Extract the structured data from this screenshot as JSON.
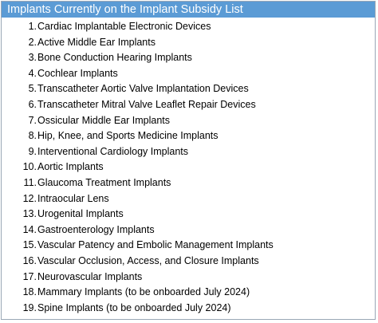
{
  "header": {
    "title": "Implants Currently on the Implant Subsidy List"
  },
  "colors": {
    "header_bg": "#5b9bd5",
    "header_text": "#ffffff",
    "border": "#9aa7b6"
  },
  "items": [
    {
      "num": "1.",
      "label": "Cardiac Implantable Electronic Devices"
    },
    {
      "num": "2.",
      "label": "Active Middle Ear Implants"
    },
    {
      "num": "3.",
      "label": "Bone Conduction Hearing Implants"
    },
    {
      "num": "4.",
      "label": "Cochlear Implants"
    },
    {
      "num": "5.",
      "label": "Transcatheter Aortic Valve Implantation Devices"
    },
    {
      "num": "6.",
      "label": "Transcatheter Mitral Valve Leaflet Repair Devices"
    },
    {
      "num": "7.",
      "label": "Ossicular Middle Ear Implants"
    },
    {
      "num": "8.",
      "label": "Hip, Knee, and Sports Medicine Implants"
    },
    {
      "num": "9.",
      "label": "Interventional Cardiology Implants"
    },
    {
      "num": "10.",
      "label": "Aortic Implants"
    },
    {
      "num": "11.",
      "label": "Glaucoma Treatment Implants"
    },
    {
      "num": "12.",
      "label": "Intraocular Lens"
    },
    {
      "num": "13.",
      "label": "Urogenital Implants"
    },
    {
      "num": "14.",
      "label": "Gastroenterology Implants"
    },
    {
      "num": "15.",
      "label": "Vascular Patency and Embolic Management Implants"
    },
    {
      "num": "16.",
      "label": "Vascular Occlusion, Access, and Closure Implants"
    },
    {
      "num": "17.",
      "label": "Neurovascular Implants"
    },
    {
      "num": "18.",
      "label": "Mammary Implants (to be onboarded July 2024)"
    },
    {
      "num": "19.",
      "label": "Spine Implants (to be onboarded July 2024)"
    }
  ]
}
